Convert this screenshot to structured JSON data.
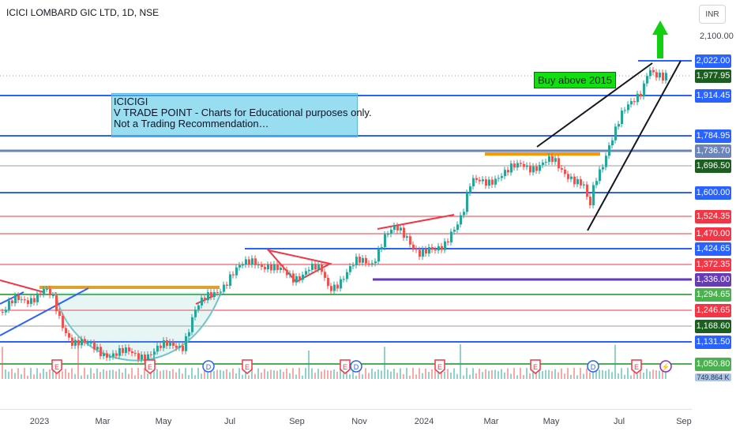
{
  "header": {
    "title": "ICICI LOMBARD GIC LTD, 1D, NSE"
  },
  "note": {
    "lines": [
      "ICICIGI",
      "V TRADE POINT - Charts for Educational purposes only.",
      "Not a Trading Recommendation…"
    ]
  },
  "buy_label": "Buy above 2015",
  "price_axis": {
    "currency": "INR",
    "top_tick": "2,100.00",
    "bottom_tick": "749.864 K",
    "labels": [
      {
        "text": "2,022.00",
        "color": "#2962ff",
        "value": 2022.0
      },
      {
        "text": "1,977.95",
        "color": "#1b5e20",
        "value": 1977.95
      },
      {
        "text": "1,914.45",
        "color": "#2962ff",
        "value": 1914.45
      },
      {
        "text": "1,784.95",
        "color": "#2962ff",
        "value": 1784.95
      },
      {
        "text": "1,736.70",
        "color": "#6c84b8",
        "value": 1736.7
      },
      {
        "text": "1,696.50",
        "color": "#1b5e20",
        "value": 1696.5
      },
      {
        "text": "1,600.00",
        "color": "#2962ff",
        "value": 1600.0
      },
      {
        "text": "1,524.35",
        "color": "#f23645",
        "value": 1524.35
      },
      {
        "text": "1,470.00",
        "color": "#f23645",
        "value": 1470.0
      },
      {
        "text": "1,424.65",
        "color": "#2962ff",
        "value": 1424.65
      },
      {
        "text": "1,372.35",
        "color": "#f23645",
        "value": 1372.35
      },
      {
        "text": "1,336.00",
        "color": "#673ab7",
        "value": 1336.0
      },
      {
        "text": "1,294.65",
        "color": "#4caf50",
        "value": 1294.65
      },
      {
        "text": "1,246.65",
        "color": "#f23645",
        "value": 1246.65
      },
      {
        "text": "1,168.60",
        "color": "#1b5e20",
        "value": 1168.6
      },
      {
        "text": "1,131.50",
        "color": "#2962ff",
        "value": 1131.5
      },
      {
        "text": "1,050.80",
        "color": "#4caf50",
        "value": 1050.8
      }
    ]
  },
  "time_axis": {
    "labels": [
      "2023",
      "Mar",
      "May",
      "Jul",
      "Sep",
      "Nov",
      "2024",
      "Mar",
      "May",
      "Jul",
      "Sep"
    ]
  },
  "event_markers": [
    "E",
    "E",
    "E",
    "D",
    "E",
    "E",
    "D",
    "E",
    "E",
    "D",
    "E",
    "⚡"
  ],
  "colors": {
    "up": "#26a69a",
    "down": "#ef5350",
    "blue_line": "#2962ff",
    "red_line": "#f23645",
    "green_line": "#4caf50"
  }
}
